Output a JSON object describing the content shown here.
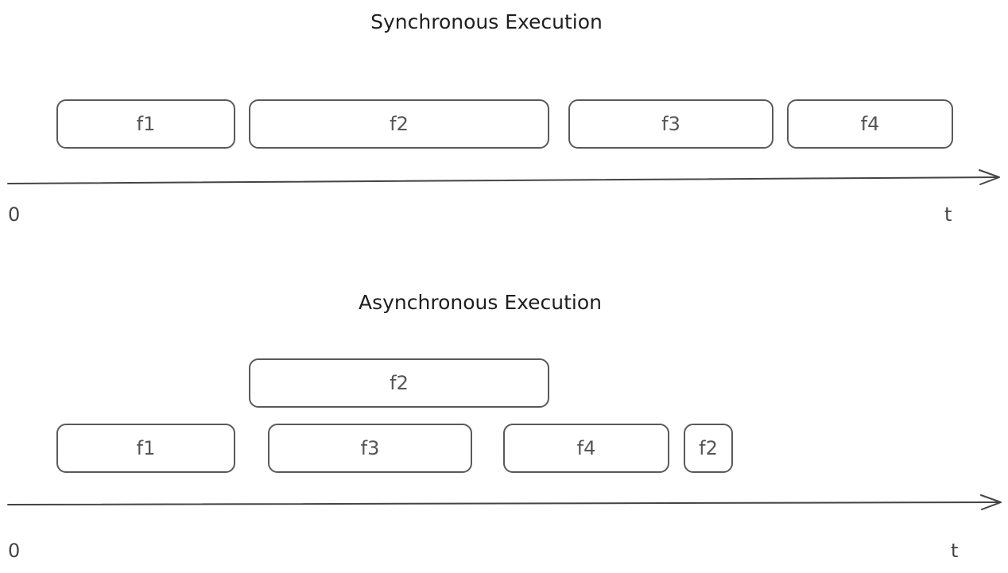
{
  "sync": {
    "title": "Synchronous Execution",
    "tasks": [
      {
        "label": "f1"
      },
      {
        "label": "f2"
      },
      {
        "label": "f3"
      },
      {
        "label": "f4"
      }
    ],
    "axis": {
      "start": "0",
      "end": "t"
    }
  },
  "async": {
    "title": "Asynchronous Execution",
    "tasks": [
      {
        "label": "f2"
      },
      {
        "label": "f1"
      },
      {
        "label": "f3"
      },
      {
        "label": "f4"
      },
      {
        "label": "f2"
      }
    ],
    "axis": {
      "start": "0",
      "end": "t"
    }
  },
  "colors": {
    "stroke": "#5a5a5a",
    "text": "#1e1e1e"
  }
}
